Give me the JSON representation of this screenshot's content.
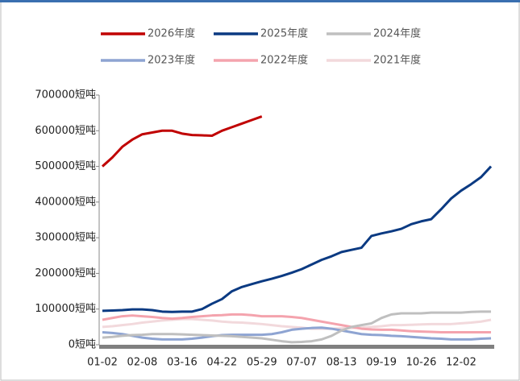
{
  "chart_data": {
    "type": "line",
    "categories": [
      "01-02",
      null,
      null,
      null,
      "02-08",
      null,
      null,
      null,
      "03-16",
      null,
      null,
      null,
      "04-22",
      null,
      null,
      null,
      "05-29",
      null,
      null,
      null,
      "07-07",
      null,
      null,
      null,
      "08-13",
      null,
      null,
      null,
      "09-19",
      null,
      null,
      null,
      "10-26",
      null,
      null,
      null,
      "12-02",
      null,
      null,
      null
    ],
    "ylim": [
      0,
      700000
    ],
    "yticks": [
      {
        "value": 0,
        "label": "0短吨"
      },
      {
        "value": 100000,
        "label": "100000短吨"
      },
      {
        "value": 200000,
        "label": "200000短吨"
      },
      {
        "value": 300000,
        "label": "300000短吨"
      },
      {
        "value": 400000,
        "label": "400000短吨"
      },
      {
        "value": 500000,
        "label": "500000短吨"
      },
      {
        "value": 600000,
        "label": "600000短吨"
      },
      {
        "value": 700000,
        "label": "700000短吨"
      }
    ],
    "series": [
      {
        "name": "2026年度",
        "color": "#c00000",
        "values": [
          500000,
          525000,
          555000,
          575000,
          590000,
          595000,
          600000,
          600000,
          592000,
          588000,
          587000,
          586000,
          600000,
          610000,
          620000,
          630000,
          640000,
          null,
          null,
          null,
          null,
          null,
          null,
          null,
          null,
          null,
          null,
          null,
          null,
          null,
          null,
          null,
          null,
          null,
          null,
          null,
          null,
          null,
          null,
          null
        ]
      },
      {
        "name": "2025年度",
        "color": "#0b3a82",
        "values": [
          95000,
          96000,
          97000,
          99000,
          99000,
          97000,
          93000,
          92000,
          93000,
          93000,
          100000,
          115000,
          128000,
          150000,
          162000,
          170000,
          178000,
          185000,
          193000,
          202000,
          212000,
          225000,
          238000,
          248000,
          260000,
          266000,
          272000,
          305000,
          312000,
          318000,
          325000,
          338000,
          346000,
          352000,
          380000,
          410000,
          432000,
          450000,
          470000,
          500000
        ]
      },
      {
        "name": "2024年度",
        "color": "#bfbfbf",
        "values": [
          20000,
          22000,
          25000,
          27000,
          28000,
          30000,
          30000,
          30000,
          29000,
          28000,
          27000,
          26000,
          25000,
          24000,
          22000,
          20000,
          18000,
          14000,
          10000,
          7000,
          8000,
          10000,
          15000,
          25000,
          40000,
          50000,
          55000,
          60000,
          75000,
          85000,
          88000,
          88000,
          88000,
          90000,
          90000,
          90000,
          90000,
          92000,
          93000,
          93000
        ]
      },
      {
        "name": "2023年度",
        "color": "#8ea4d2",
        "values": [
          35000,
          33000,
          30000,
          25000,
          20000,
          17000,
          15000,
          15000,
          15000,
          17000,
          20000,
          24000,
          27000,
          28000,
          28000,
          28000,
          28000,
          30000,
          35000,
          42000,
          45000,
          47000,
          48000,
          45000,
          40000,
          35000,
          30000,
          28000,
          27000,
          25000,
          24000,
          22000,
          20000,
          18000,
          17000,
          15000,
          15000,
          15000,
          17000,
          18000
        ]
      },
      {
        "name": "2022年度",
        "color": "#f4a3ad",
        "values": [
          70000,
          75000,
          80000,
          82000,
          80000,
          78000,
          75000,
          73000,
          75000,
          78000,
          80000,
          82000,
          83000,
          85000,
          85000,
          83000,
          80000,
          80000,
          80000,
          78000,
          75000,
          70000,
          65000,
          60000,
          55000,
          50000,
          45000,
          43000,
          42000,
          42000,
          40000,
          38000,
          37000,
          36000,
          35000,
          35000,
          35000,
          35000,
          35000,
          35000
        ]
      },
      {
        "name": "2021年度",
        "color": "#f2d9dc",
        "values": [
          50000,
          52000,
          55000,
          58000,
          62000,
          65000,
          68000,
          70000,
          72000,
          72000,
          70000,
          68000,
          65000,
          63000,
          62000,
          60000,
          58000,
          55000,
          52000,
          50000,
          48000,
          45000,
          45000,
          45000,
          46000,
          47000,
          48000,
          50000,
          52000,
          55000,
          55000,
          56000,
          57000,
          58000,
          58000,
          58000,
          60000,
          62000,
          65000,
          70000
        ]
      }
    ]
  }
}
